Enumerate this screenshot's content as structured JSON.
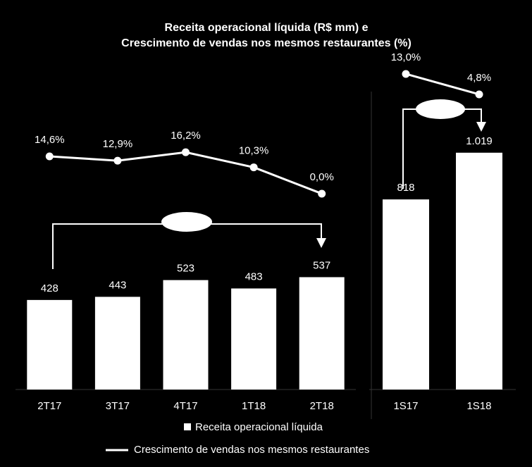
{
  "chart_data": [
    {
      "type": "bar",
      "title": [
        "Receita operacional líquida (R$ mm) e",
        "Crescimento de vendas nos mesmos restaurantes (%)"
      ],
      "categories": [
        "2T17",
        "3T17",
        "4T17",
        "1T18",
        "2T18"
      ],
      "series": [
        {
          "name": "Receita operacional líquida",
          "type": "bar",
          "color": "#ffffff",
          "values": [
            428,
            443,
            523,
            483,
            537
          ]
        },
        {
          "name": "Crescimento de vendas nos mesmos restaurantes",
          "type": "line",
          "axis": "y2",
          "color": "#ffffff",
          "values": [
            14.6,
            12.9,
            16.2,
            10.3,
            0.0
          ],
          "value_labels": [
            "14,6%",
            "12,9%",
            "16,2%",
            "10,3%",
            "0,0%"
          ]
        }
      ],
      "ylim": [
        0,
        1525
      ],
      "y2lim": [
        -76.6,
        48.2
      ],
      "legend": "bottom"
    },
    {
      "type": "bar",
      "categories": [
        "1S17",
        "1S18"
      ],
      "series": [
        {
          "type": "bar",
          "color": "#ffffff",
          "values": [
            818,
            1019
          ],
          "value_labels": [
            "818",
            "1.019"
          ]
        },
        {
          "type": "line",
          "axis": "y2",
          "color": "#ffffff",
          "values": [
            13.0,
            4.8
          ],
          "value_labels": [
            "13,0%",
            "4,8%"
          ]
        }
      ],
      "ylim": [
        0,
        1373
      ],
      "y2lim": [
        -113.6,
        14.4
      ]
    }
  ]
}
